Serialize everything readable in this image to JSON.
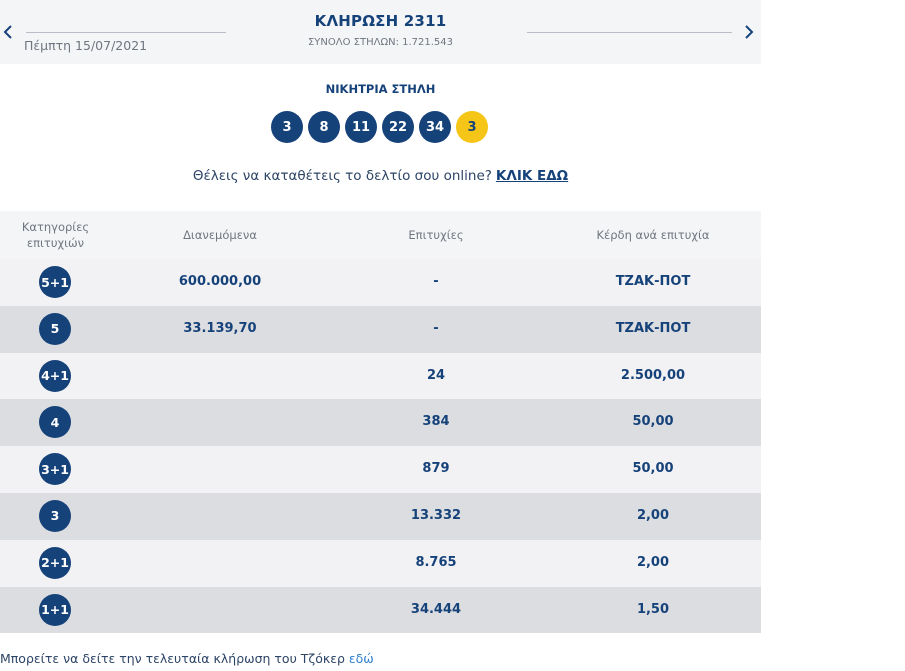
{
  "header": {
    "title": "ΚΛΗΡΩΣΗ 2311",
    "subtitle": "ΣΥΝΟΛΟ ΣΤΗΛΩΝ: 1.721.543",
    "date": "Πέμπτη 15/07/2021",
    "prev_icon": "chevron-left-icon",
    "next_icon": "chevron-right-icon"
  },
  "winning": {
    "label": "ΝΙΚΗΤΡΙΑ ΣΤΗΛΗ",
    "numbers": [
      "3",
      "8",
      "11",
      "22",
      "34"
    ],
    "joker": "3"
  },
  "online": {
    "text": "Θέλεις να καταθέτεις το δελτίο σου online?",
    "link": "ΚΛΙΚ ΕΔΩ"
  },
  "table": {
    "headers": {
      "category_line1": "Κατηγορίες",
      "category_line2": "επιτυχιών",
      "distributed": "Διανεμόμενα",
      "winners": "Επιτυχίες",
      "prize": "Κέρδη ανά επιτυχία"
    },
    "rows": [
      {
        "category": "5+1",
        "distributed": "600.000,00",
        "winners": "-",
        "prize": "ΤΖΑΚ-ΠΟΤ"
      },
      {
        "category": "5",
        "distributed": "33.139,70",
        "winners": "-",
        "prize": "ΤΖΑΚ-ΠΟΤ"
      },
      {
        "category": "4+1",
        "distributed": "",
        "winners": "24",
        "prize": "2.500,00"
      },
      {
        "category": "4",
        "distributed": "",
        "winners": "384",
        "prize": "50,00"
      },
      {
        "category": "3+1",
        "distributed": "",
        "winners": "879",
        "prize": "50,00"
      },
      {
        "category": "3",
        "distributed": "",
        "winners": "13.332",
        "prize": "2,00"
      },
      {
        "category": "2+1",
        "distributed": "",
        "winners": "8.765",
        "prize": "2,00"
      },
      {
        "category": "1+1",
        "distributed": "",
        "winners": "34.444",
        "prize": "1,50"
      }
    ]
  },
  "footer": {
    "text": "Μπορείτε να δείτε την τελευταία κλήρωση του Τζόκερ ",
    "link": "εδώ"
  },
  "colors": {
    "primary": "#16427a",
    "joker": "#f5c518",
    "link": "#2f7fd0"
  }
}
